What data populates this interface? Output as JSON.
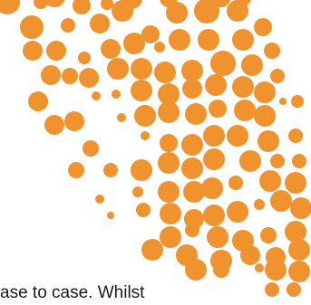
{
  "colors": {
    "dot": "#f0922e",
    "background": "#ffffff",
    "text": "#1a1a1a"
  },
  "graphic": {
    "name": "orange-dot-pattern"
  },
  "text": {
    "line": "ase to case. Whilst"
  }
}
